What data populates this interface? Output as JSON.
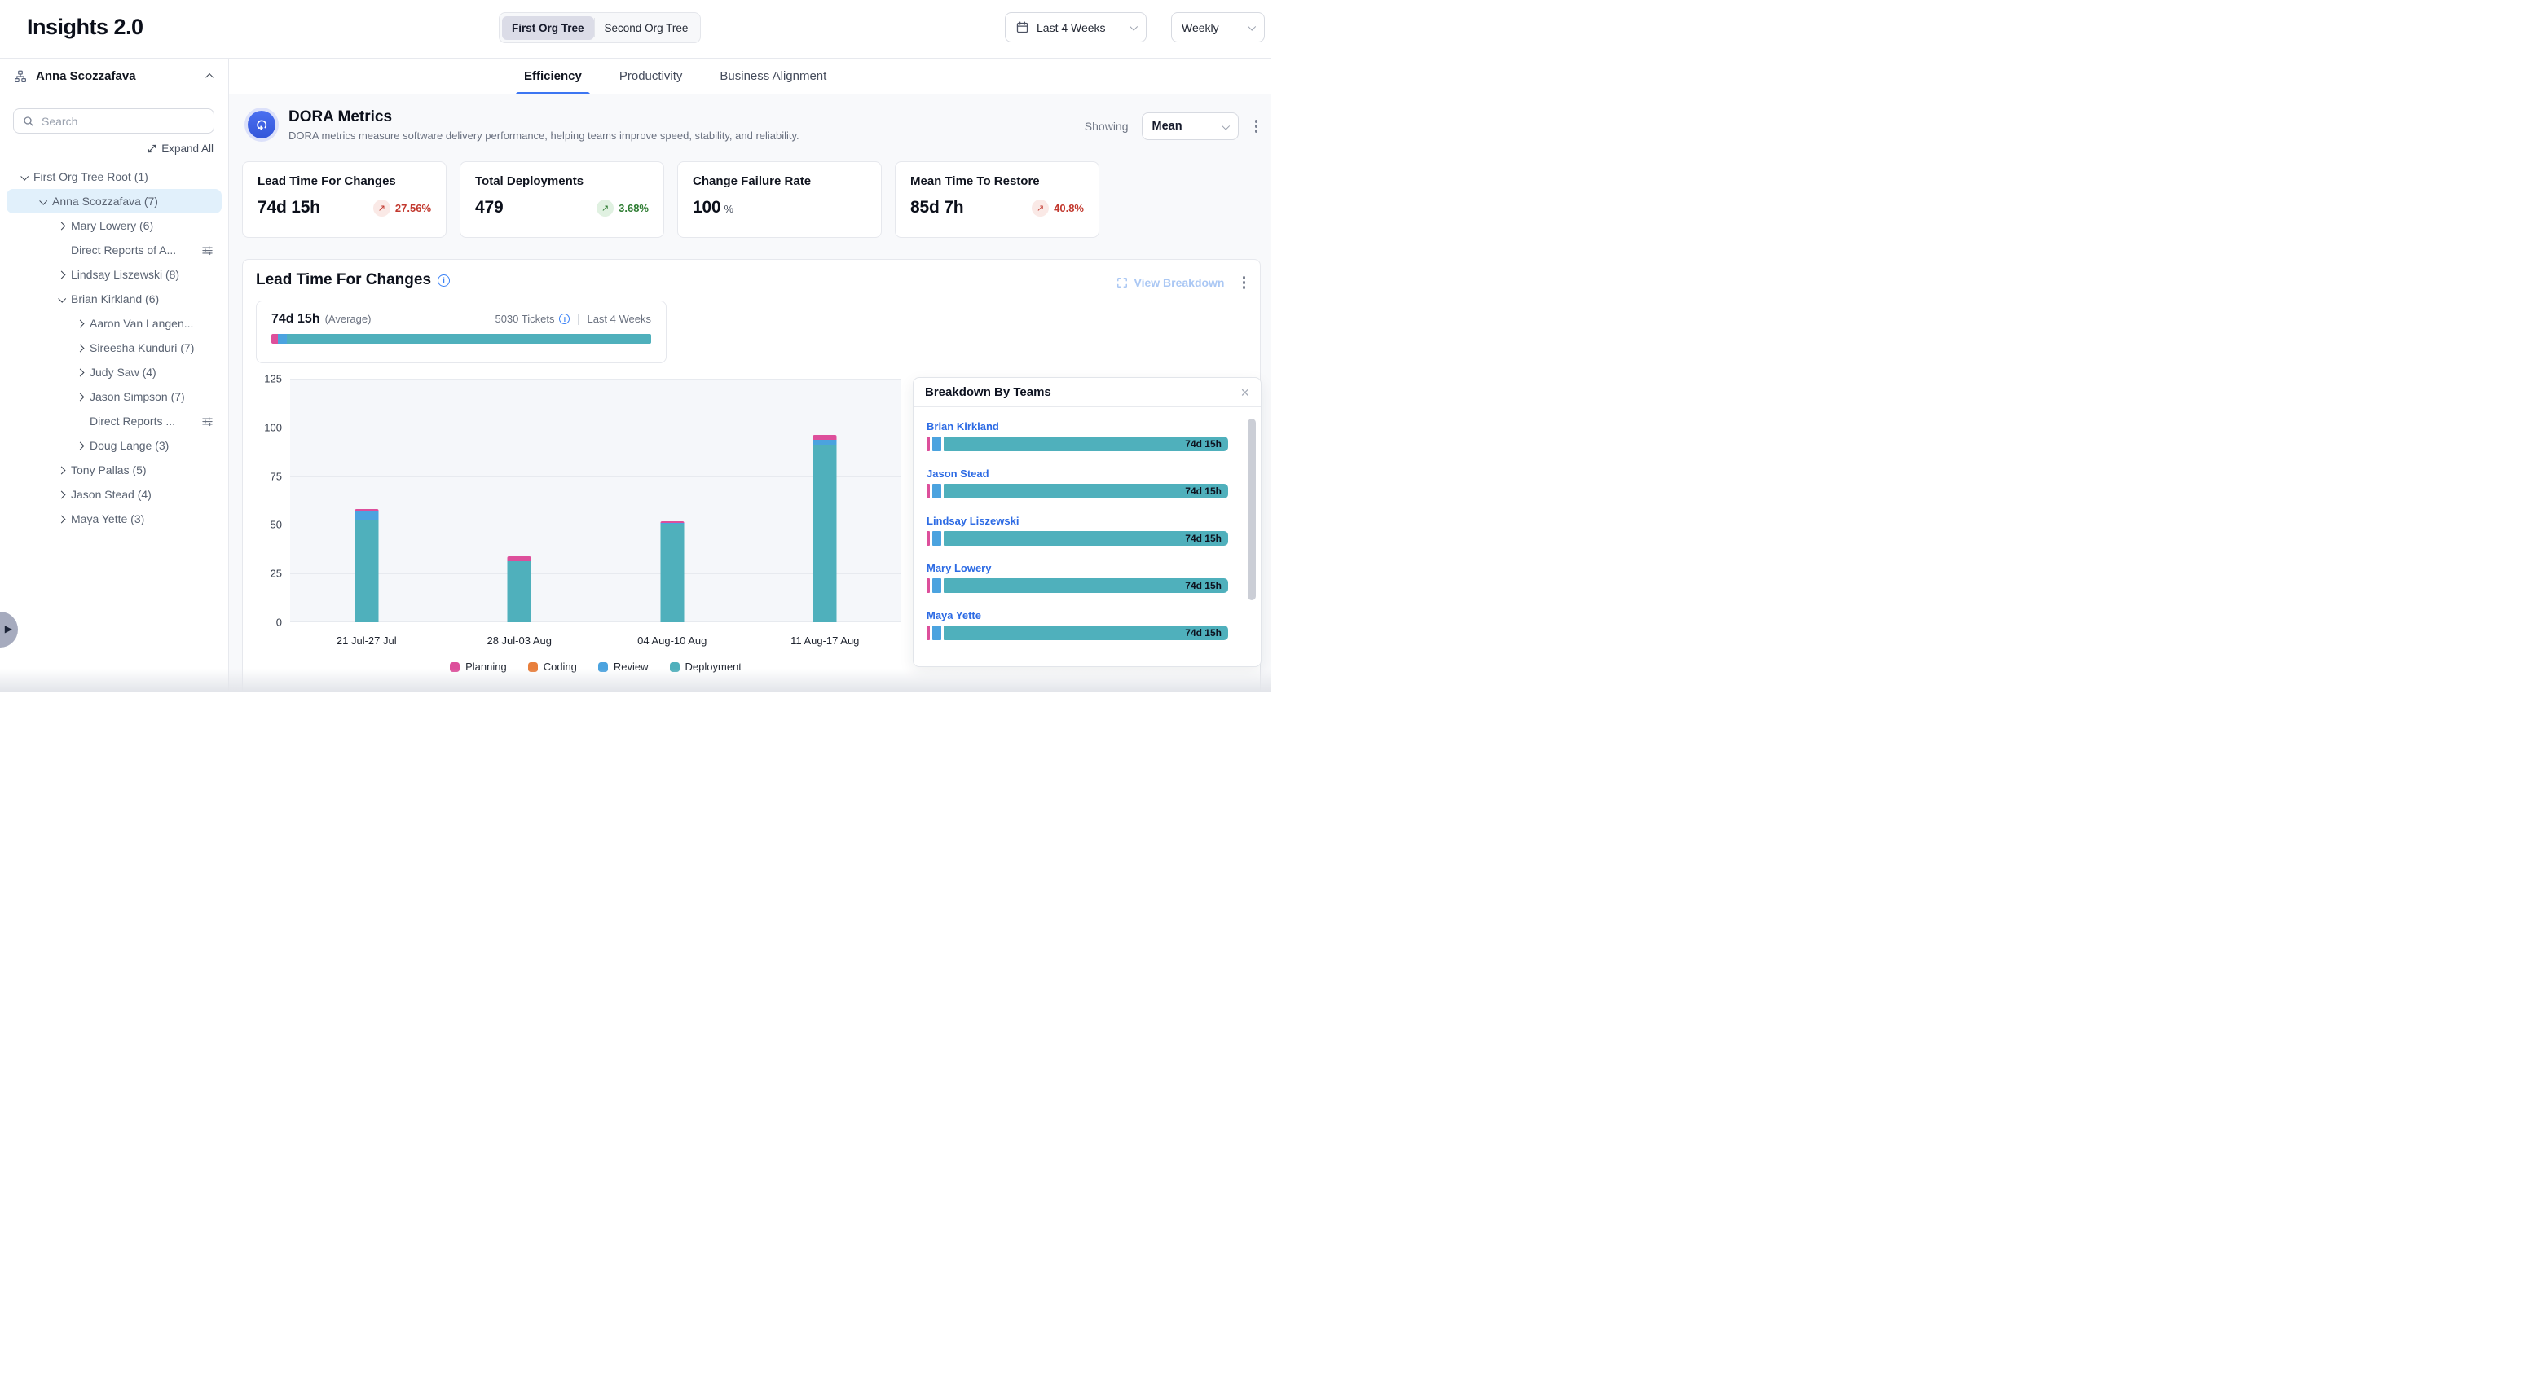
{
  "header": {
    "app_title": "Insights 2.0",
    "org_tree_toggle": {
      "options": [
        "First Org Tree",
        "Second Org Tree"
      ],
      "active": "First Org Tree"
    },
    "date_range": {
      "label": "Last 4 Weeks"
    },
    "granularity": {
      "label": "Weekly"
    }
  },
  "sidebar": {
    "owner": "Anna Scozzafava",
    "search_placeholder": "Search",
    "expand_all_label": "Expand All",
    "tree": [
      {
        "label": "First Org Tree Root",
        "count": "(1)",
        "level": 0,
        "state": "expanded",
        "selected": false
      },
      {
        "label": "Anna Scozzafava",
        "count": "(7)",
        "level": 1,
        "state": "expanded",
        "selected": true
      },
      {
        "label": "Mary Lowery",
        "count": "(6)",
        "level": 2,
        "state": "collapsed",
        "selected": false
      },
      {
        "label": "Direct Reports of A...",
        "count": "",
        "level": 2,
        "state": "none",
        "icon": "filter",
        "selected": false
      },
      {
        "label": "Lindsay Liszewski",
        "count": "(8)",
        "level": 2,
        "state": "collapsed",
        "selected": false
      },
      {
        "label": "Brian Kirkland",
        "count": "(6)",
        "level": 2,
        "state": "expanded",
        "selected": false
      },
      {
        "label": "Aaron Van Langen...",
        "count": "",
        "level": 3,
        "state": "collapsed",
        "selected": false
      },
      {
        "label": "Sireesha Kunduri",
        "count": "(7)",
        "level": 3,
        "state": "collapsed",
        "selected": false
      },
      {
        "label": "Judy Saw",
        "count": "(4)",
        "level": 3,
        "state": "collapsed",
        "selected": false
      },
      {
        "label": "Jason Simpson",
        "count": "(7)",
        "level": 3,
        "state": "collapsed",
        "selected": false
      },
      {
        "label": "Direct Reports ...",
        "count": "",
        "level": 3,
        "state": "none",
        "icon": "filter",
        "selected": false
      },
      {
        "label": "Doug Lange",
        "count": "(3)",
        "level": 3,
        "state": "collapsed",
        "selected": false
      },
      {
        "label": "Tony Pallas",
        "count": "(5)",
        "level": 2,
        "state": "collapsed",
        "selected": false
      },
      {
        "label": "Jason Stead",
        "count": "(4)",
        "level": 2,
        "state": "collapsed",
        "selected": false
      },
      {
        "label": "Maya Yette",
        "count": "(3)",
        "level": 2,
        "state": "collapsed",
        "selected": false
      }
    ]
  },
  "tabs": [
    {
      "label": "Efficiency",
      "active": true
    },
    {
      "label": "Productivity",
      "active": false
    },
    {
      "label": "Business Alignment",
      "active": false
    }
  ],
  "dora": {
    "title": "DORA Metrics",
    "subtitle": "DORA metrics measure software delivery performance, helping teams improve speed, stability, and reliability.",
    "showing_label": "Showing",
    "showing_value": "Mean",
    "cards": [
      {
        "title": "Lead Time For Changes",
        "value": "74d 15h",
        "unit": "",
        "trend": {
          "value": "27.56%",
          "direction": "up",
          "tone": "negative"
        }
      },
      {
        "title": "Total Deployments",
        "value": "479",
        "unit": "",
        "trend": {
          "value": "3.68%",
          "direction": "up",
          "tone": "positive"
        }
      },
      {
        "title": "Change Failure Rate",
        "value": "100",
        "unit": "%",
        "trend": null
      },
      {
        "title": "Mean Time To Restore",
        "value": "85d 7h",
        "unit": "",
        "trend": {
          "value": "40.8%",
          "direction": "up",
          "tone": "negative"
        }
      }
    ]
  },
  "lead_time": {
    "title": "Lead Time For Changes",
    "view_breakdown_label": "View Breakdown",
    "average": {
      "value": "74d 15h",
      "qualifier": "(Average)",
      "tickets": "5030 Tickets",
      "range": "Last 4 Weeks",
      "segments": [
        {
          "name": "Planning",
          "color": "#DD4F9B",
          "pct": 1.7
        },
        {
          "name": "Review",
          "color": "#4BA3DF",
          "pct": 2.3
        },
        {
          "name": "Deployment",
          "color": "#4FB0BC",
          "pct": 96.0
        }
      ]
    },
    "breakdown": {
      "title": "Breakdown By Teams",
      "rows": [
        {
          "name": "Brian Kirkland",
          "value": "74d 15h"
        },
        {
          "name": "Jason Stead",
          "value": "74d 15h"
        },
        {
          "name": "Lindsay Liszewski",
          "value": "74d 15h"
        },
        {
          "name": "Mary Lowery",
          "value": "74d 15h"
        },
        {
          "name": "Maya Yette",
          "value": "74d 15h"
        }
      ]
    }
  },
  "chart_data": {
    "type": "bar",
    "stacked": true,
    "title": "Lead Time For Changes",
    "categories": [
      "21 Jul-27 Jul",
      "28 Jul-03 Aug",
      "04 Aug-10 Aug",
      "11 Aug-17 Aug"
    ],
    "series": [
      {
        "name": "Planning",
        "color": "#DD4F9B",
        "values": [
          1,
          2.5,
          1,
          2.5
        ]
      },
      {
        "name": "Coding",
        "color": "#E87F3C",
        "values": [
          0,
          0,
          0,
          0
        ]
      },
      {
        "name": "Review",
        "color": "#4BA3DF",
        "values": [
          4.5,
          0,
          0.5,
          2.5
        ]
      },
      {
        "name": "Deployment",
        "color": "#4FB0BC",
        "values": [
          52.5,
          31.5,
          50.5,
          91
        ]
      }
    ],
    "xlabel": "",
    "ylabel": "",
    "ylim": [
      0,
      125
    ],
    "yticks": [
      0,
      25,
      50,
      75,
      100,
      125
    ],
    "grid": true,
    "legend_position": "bottom"
  },
  "colors": {
    "accent_blue": "#3D76F2",
    "link_blue": "#2D6BE4",
    "negative_red": "#C2382E",
    "positive_green": "#2F7D33",
    "teal": "#4FB0BC",
    "pink": "#DD4F9B",
    "orange": "#E87F3C",
    "sky": "#4BA3DF"
  }
}
